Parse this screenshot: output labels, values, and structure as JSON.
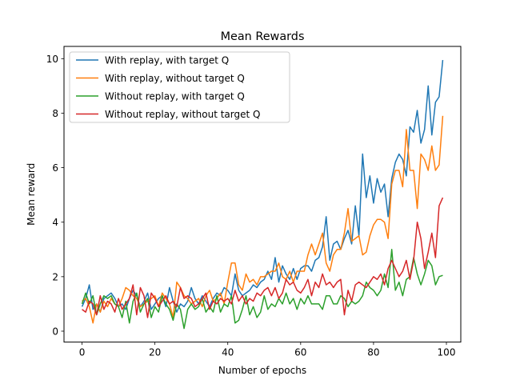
{
  "chart_data": {
    "type": "line",
    "title": "Mean Rewards",
    "xlabel": "Number of epochs",
    "ylabel": "Mean reward",
    "xlim": [
      -4.95,
      103.95
    ],
    "ylim": [
      -0.4,
      10.45
    ],
    "xticks": [
      0,
      20,
      40,
      60,
      80,
      100
    ],
    "yticks": [
      0,
      2,
      4,
      6,
      8,
      10
    ],
    "grid": false,
    "legend_position": "upper-left",
    "series": [
      {
        "name": "With replay, with target Q",
        "color": "#1f77b4",
        "values": [
          0.9,
          1.2,
          1.7,
          0.8,
          1.0,
          0.7,
          1.2,
          1.3,
          1.4,
          1.2,
          0.9,
          1.0,
          0.8,
          1.2,
          1.5,
          1.3,
          0.9,
          1.1,
          1.4,
          0.8,
          1.0,
          1.2,
          1.3,
          0.9,
          1.6,
          1.1,
          0.7,
          1.0,
          0.9,
          1.1,
          1.6,
          1.2,
          1.0,
          1.3,
          1.1,
          0.9,
          1.2,
          1.4,
          1.3,
          1.6,
          1.5,
          1.3,
          2.1,
          1.5,
          1.3,
          1.4,
          1.5,
          1.7,
          1.6,
          1.8,
          1.9,
          2.2,
          1.9,
          2.7,
          1.8,
          2.4,
          2.1,
          1.9,
          2.3,
          1.9,
          2.3,
          2.4,
          2.4,
          2.2,
          2.6,
          2.7,
          3.1,
          4.2,
          2.6,
          3.2,
          3.3,
          3.0,
          3.4,
          3.7,
          3.2,
          4.6,
          3.5,
          6.5,
          4.9,
          5.7,
          4.7,
          5.6,
          5.1,
          5.4,
          4.2,
          5.6,
          6.2,
          6.5,
          6.3,
          5.7,
          7.5,
          7.3,
          8.1,
          6.9,
          7.4,
          9.0,
          7.2,
          8.4,
          8.6,
          9.95
        ]
      },
      {
        "name": "With replay, without target Q",
        "color": "#ff7f0e",
        "values": [
          1.1,
          1.2,
          0.9,
          0.3,
          1.0,
          0.7,
          1.1,
          0.9,
          1.2,
          1.0,
          0.9,
          1.2,
          1.6,
          1.5,
          1.3,
          1.2,
          0.9,
          1.0,
          1.1,
          1.2,
          1.3,
          0.9,
          1.4,
          1.2,
          1.0,
          0.5,
          1.8,
          1.6,
          1.3,
          1.2,
          1.0,
          1.1,
          1.2,
          0.9,
          1.3,
          1.5,
          1.1,
          1.2,
          1.4,
          1.0,
          1.8,
          2.5,
          2.5,
          1.7,
          1.5,
          2.1,
          1.8,
          1.9,
          1.7,
          2.0,
          2.0,
          2.1,
          2.2,
          2.2,
          2.5,
          2.0,
          1.9,
          2.2,
          1.8,
          2.2,
          2.2,
          2.2,
          2.8,
          3.2,
          2.8,
          3.2,
          3.6,
          2.5,
          2.2,
          2.8,
          3.0,
          3.0,
          3.6,
          4.5,
          3.3,
          3.4,
          3.5,
          2.8,
          2.9,
          3.5,
          3.9,
          4.1,
          4.1,
          4.0,
          3.4,
          5.4,
          5.9,
          5.9,
          5.3,
          7.4,
          5.9,
          5.9,
          4.5,
          6.5,
          6.3,
          5.9,
          6.8,
          5.9,
          6.1,
          7.9
        ]
      },
      {
        "name": "Without replay, with target Q",
        "color": "#2ca02c",
        "values": [
          1.0,
          1.4,
          1.0,
          1.3,
          0.6,
          1.0,
          1.3,
          1.2,
          1.3,
          1.0,
          0.9,
          0.5,
          1.1,
          0.3,
          1.1,
          1.4,
          0.7,
          1.0,
          1.2,
          0.5,
          0.9,
          0.7,
          1.3,
          1.0,
          0.8,
          0.4,
          1.0,
          0.8,
          0.1,
          0.8,
          1.0,
          0.8,
          0.9,
          1.2,
          0.7,
          0.9,
          0.7,
          1.3,
          0.7,
          1.0,
          0.9,
          1.3,
          0.3,
          0.4,
          0.8,
          1.3,
          0.6,
          0.9,
          0.5,
          0.7,
          1.3,
          0.8,
          1.0,
          0.9,
          1.2,
          1.0,
          1.4,
          1.0,
          1.2,
          0.8,
          1.2,
          1.0,
          1.3,
          1.0,
          1.0,
          1.0,
          0.8,
          1.3,
          1.3,
          1.0,
          1.0,
          1.3,
          1.2,
          0.9,
          1.1,
          1.0,
          1.1,
          1.3,
          1.8,
          1.6,
          1.5,
          1.3,
          1.5,
          2.1,
          1.6,
          3.0,
          1.5,
          1.8,
          1.3,
          1.9,
          2.0,
          2.7,
          2.1,
          1.7,
          2.1,
          2.6,
          2.4,
          1.7,
          2.0,
          2.05
        ]
      },
      {
        "name": "Without replay, without target Q",
        "color": "#d62728",
        "values": [
          0.8,
          0.7,
          1.1,
          1.0,
          0.6,
          1.3,
          0.8,
          1.1,
          1.0,
          0.7,
          1.2,
          0.8,
          1.0,
          1.2,
          1.7,
          0.6,
          1.6,
          1.3,
          0.5,
          1.4,
          1.2,
          0.9,
          1.1,
          1.3,
          1.0,
          1.1,
          0.9,
          1.6,
          1.2,
          1.3,
          1.2,
          0.9,
          1.0,
          1.2,
          1.4,
          0.8,
          1.1,
          1.0,
          1.2,
          1.1,
          1.2,
          1.0,
          1.5,
          1.1,
          1.3,
          1.0,
          1.2,
          1.1,
          1.4,
          1.3,
          1.5,
          1.6,
          1.3,
          1.6,
          1.2,
          1.4,
          1.9,
          1.7,
          1.8,
          1.5,
          1.4,
          1.6,
          1.9,
          1.3,
          1.8,
          1.6,
          2.1,
          1.7,
          1.8,
          1.6,
          1.8,
          1.9,
          0.6,
          1.5,
          1.1,
          1.7,
          1.8,
          1.7,
          1.6,
          1.8,
          2.0,
          1.9,
          2.1,
          1.7,
          2.3,
          2.6,
          2.3,
          2.0,
          2.2,
          2.6,
          1.9,
          2.6,
          4.0,
          3.4,
          2.3,
          2.9,
          3.6,
          2.7,
          4.6,
          4.9
        ]
      }
    ]
  }
}
